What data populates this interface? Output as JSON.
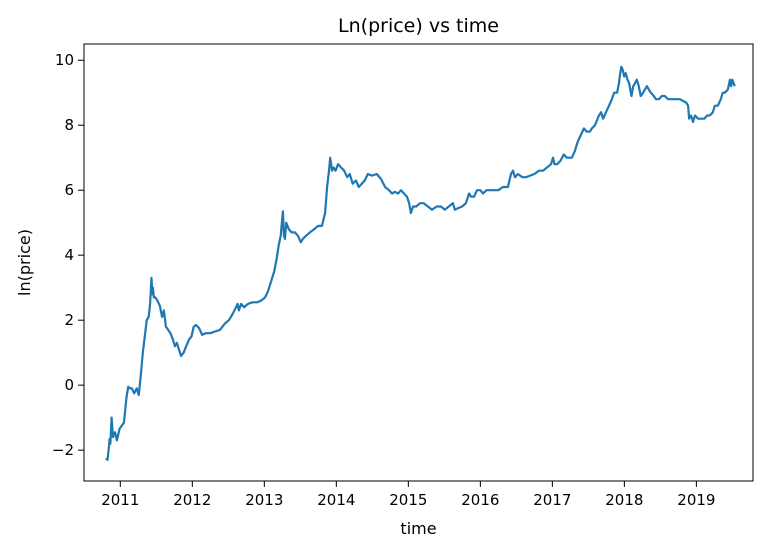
{
  "chart_data": {
    "type": "line",
    "title": "Ln(price) vs time",
    "xlabel": "time",
    "ylabel": "ln(price)",
    "xlim": [
      "2010-07-01",
      "2019-10-15"
    ],
    "ylim": [
      -2.95,
      10.5
    ],
    "x_ticks": [
      "2011",
      "2012",
      "2013",
      "2014",
      "2015",
      "2016",
      "2017",
      "2018",
      "2019"
    ],
    "y_ticks": [
      "−2",
      "0",
      "2",
      "4",
      "6",
      "8",
      "10"
    ],
    "grid": false,
    "legend": "none",
    "series": [
      {
        "color": "#1f77b4",
        "x": [
          "2010-10-20",
          "2010-10-28",
          "2010-11-05",
          "2010-11-08",
          "2010-11-12",
          "2010-11-18",
          "2010-11-25",
          "2010-12-05",
          "2010-12-15",
          "2010-12-28",
          "2011-01-08",
          "2011-01-20",
          "2011-02-01",
          "2011-02-10",
          "2011-02-20",
          "2011-03-01",
          "2011-03-12",
          "2011-03-25",
          "2011-04-05",
          "2011-04-15",
          "2011-04-25",
          "2011-05-05",
          "2011-05-15",
          "2011-05-25",
          "2011-06-01",
          "2011-06-08",
          "2011-06-12",
          "2011-06-15",
          "2011-06-20",
          "2011-06-28",
          "2011-07-08",
          "2011-07-20",
          "2011-08-01",
          "2011-08-10",
          "2011-08-20",
          "2011-09-01",
          "2011-09-12",
          "2011-09-25",
          "2011-10-05",
          "2011-10-15",
          "2011-10-25",
          "2011-11-05",
          "2011-11-18",
          "2011-12-01",
          "2011-12-15",
          "2011-12-28",
          "2012-01-08",
          "2012-01-20",
          "2012-02-05",
          "2012-02-20",
          "2012-03-10",
          "2012-04-01",
          "2012-04-25",
          "2012-05-20",
          "2012-06-15",
          "2012-07-05",
          "2012-07-25",
          "2012-08-10",
          "2012-08-18",
          "2012-08-25",
          "2012-09-05",
          "2012-09-20",
          "2012-10-10",
          "2012-11-01",
          "2012-11-25",
          "2012-12-15",
          "2013-01-05",
          "2013-01-20",
          "2013-02-05",
          "2013-02-20",
          "2013-03-05",
          "2013-03-15",
          "2013-03-25",
          "2013-04-05",
          "2013-04-10",
          "2013-04-16",
          "2013-04-22",
          "2013-05-05",
          "2013-05-20",
          "2013-06-05",
          "2013-06-20",
          "2013-07-05",
          "2013-07-15",
          "2013-08-01",
          "2013-08-20",
          "2013-09-10",
          "2013-10-01",
          "2013-10-20",
          "2013-11-05",
          "2013-11-15",
          "2013-11-25",
          "2013-12-01",
          "2013-12-10",
          "2013-12-18",
          "2013-12-28",
          "2014-01-10",
          "2014-01-25",
          "2014-02-10",
          "2014-02-25",
          "2014-03-10",
          "2014-03-25",
          "2014-04-10",
          "2014-04-25",
          "2014-05-10",
          "2014-05-25",
          "2014-06-10",
          "2014-07-01",
          "2014-07-25",
          "2014-08-15",
          "2014-09-05",
          "2014-09-25",
          "2014-10-10",
          "2014-10-25",
          "2014-11-10",
          "2014-11-25",
          "2014-12-10",
          "2014-12-25",
          "2015-01-05",
          "2015-01-14",
          "2015-01-25",
          "2015-02-10",
          "2015-03-01",
          "2015-03-20",
          "2015-04-10",
          "2015-05-01",
          "2015-05-25",
          "2015-06-15",
          "2015-07-05",
          "2015-07-25",
          "2015-08-15",
          "2015-08-25",
          "2015-09-10",
          "2015-10-01",
          "2015-10-20",
          "2015-11-05",
          "2015-11-15",
          "2015-11-30",
          "2015-12-15",
          "2016-01-01",
          "2016-01-15",
          "2016-02-01",
          "2016-02-20",
          "2016-03-10",
          "2016-04-01",
          "2016-04-25",
          "2016-05-20",
          "2016-06-05",
          "2016-06-15",
          "2016-06-25",
          "2016-07-10",
          "2016-08-01",
          "2016-08-20",
          "2016-09-10",
          "2016-10-01",
          "2016-10-25",
          "2016-11-15",
          "2016-12-05",
          "2016-12-25",
          "2017-01-04",
          "2017-01-12",
          "2017-01-25",
          "2017-02-10",
          "2017-02-28",
          "2017-03-15",
          "2017-03-25",
          "2017-04-10",
          "2017-04-25",
          "2017-05-10",
          "2017-05-25",
          "2017-06-10",
          "2017-06-25",
          "2017-07-10",
          "2017-07-20",
          "2017-08-05",
          "2017-08-25",
          "2017-09-05",
          "2017-09-15",
          "2017-09-30",
          "2017-10-15",
          "2017-10-30",
          "2017-11-10",
          "2017-11-25",
          "2017-12-05",
          "2017-12-10",
          "2017-12-17",
          "2017-12-24",
          "2017-12-31",
          "2018-01-08",
          "2018-01-17",
          "2018-01-25",
          "2018-02-06",
          "2018-02-15",
          "2018-02-25",
          "2018-03-05",
          "2018-03-15",
          "2018-03-25",
          "2018-04-06",
          "2018-04-15",
          "2018-04-25",
          "2018-05-05",
          "2018-05-15",
          "2018-05-30",
          "2018-06-10",
          "2018-06-25",
          "2018-07-10",
          "2018-07-25",
          "2018-08-10",
          "2018-08-25",
          "2018-09-10",
          "2018-09-25",
          "2018-10-10",
          "2018-10-25",
          "2018-11-10",
          "2018-11-20",
          "2018-11-25",
          "2018-12-05",
          "2018-12-15",
          "2018-12-25",
          "2019-01-10",
          "2019-01-25",
          "2019-02-10",
          "2019-02-25",
          "2019-03-10",
          "2019-03-25",
          "2019-04-05",
          "2019-04-20",
          "2019-05-05",
          "2019-05-15",
          "2019-05-25",
          "2019-06-10",
          "2019-06-20",
          "2019-06-26",
          "2019-07-02",
          "2019-07-08",
          "2019-07-14"
        ],
        "y": [
          -2.25,
          -2.3,
          -1.85,
          -1.65,
          -1.8,
          -1.0,
          -1.6,
          -1.45,
          -1.7,
          -1.35,
          -1.25,
          -1.15,
          -0.4,
          -0.05,
          -0.1,
          -0.1,
          -0.25,
          -0.1,
          -0.3,
          0.3,
          1.0,
          1.5,
          2.0,
          2.1,
          2.5,
          3.3,
          2.8,
          3.0,
          2.7,
          2.7,
          2.6,
          2.45,
          2.1,
          2.3,
          1.8,
          1.7,
          1.6,
          1.4,
          1.2,
          1.3,
          1.1,
          0.9,
          1.0,
          1.2,
          1.4,
          1.5,
          1.8,
          1.85,
          1.75,
          1.55,
          1.6,
          1.6,
          1.65,
          1.7,
          1.9,
          2.0,
          2.2,
          2.4,
          2.5,
          2.3,
          2.5,
          2.4,
          2.5,
          2.55,
          2.55,
          2.6,
          2.7,
          2.9,
          3.2,
          3.5,
          3.9,
          4.3,
          4.6,
          5.35,
          4.6,
          4.5,
          5.0,
          4.8,
          4.7,
          4.7,
          4.6,
          4.4,
          4.5,
          4.6,
          4.7,
          4.8,
          4.9,
          4.9,
          5.3,
          6.1,
          6.6,
          7.0,
          6.6,
          6.7,
          6.6,
          6.8,
          6.7,
          6.6,
          6.4,
          6.5,
          6.2,
          6.3,
          6.1,
          6.2,
          6.3,
          6.5,
          6.45,
          6.5,
          6.35,
          6.1,
          6.0,
          5.9,
          5.95,
          5.9,
          6.0,
          5.9,
          5.8,
          5.6,
          5.3,
          5.5,
          5.5,
          5.6,
          5.6,
          5.5,
          5.4,
          5.5,
          5.5,
          5.4,
          5.5,
          5.6,
          5.4,
          5.45,
          5.5,
          5.6,
          5.9,
          5.8,
          5.8,
          6.0,
          6.0,
          5.9,
          6.0,
          6.0,
          6.0,
          6.0,
          6.1,
          6.1,
          6.5,
          6.6,
          6.4,
          6.5,
          6.4,
          6.4,
          6.45,
          6.5,
          6.6,
          6.6,
          6.7,
          6.8,
          7.0,
          6.8,
          6.8,
          6.9,
          7.1,
          7.0,
          7.0,
          7.0,
          7.2,
          7.5,
          7.7,
          7.9,
          7.8,
          7.8,
          7.9,
          8.0,
          8.3,
          8.4,
          8.2,
          8.4,
          8.6,
          8.8,
          9.0,
          9.0,
          9.3,
          9.55,
          9.8,
          9.7,
          9.5,
          9.6,
          9.4,
          9.3,
          8.9,
          9.2,
          9.3,
          9.4,
          9.2,
          8.9,
          9.0,
          9.1,
          9.2,
          9.1,
          9.0,
          8.9,
          8.8,
          8.8,
          8.9,
          8.9,
          8.8,
          8.8,
          8.8,
          8.8,
          8.8,
          8.75,
          8.7,
          8.6,
          8.2,
          8.3,
          8.1,
          8.3,
          8.2,
          8.2,
          8.2,
          8.3,
          8.3,
          8.4,
          8.6,
          8.6,
          8.8,
          9.0,
          9.0,
          9.1,
          9.4,
          9.2,
          9.4,
          9.3,
          9.2
        ]
      }
    ]
  }
}
